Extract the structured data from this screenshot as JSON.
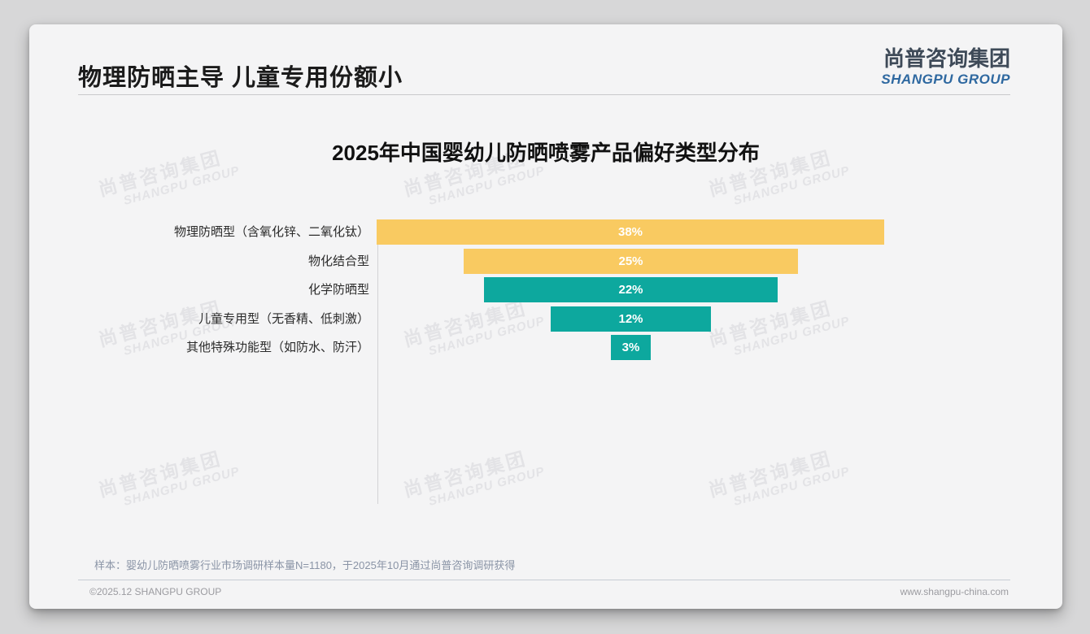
{
  "header": {
    "title": "物理防晒主导 儿童专用份额小"
  },
  "logo": {
    "cn": "尚普咨询集团",
    "en": "SHANGPU GROUP",
    "cn_color": "#3e4a58",
    "en_color": "#2e68a0"
  },
  "chart_data": {
    "type": "bar",
    "orientation": "horizontal-centered-funnel",
    "title": "2025年中国婴幼儿防晒喷雾产品偏好类型分布",
    "categories": [
      "物理防晒型（含氧化锌、二氧化钛）",
      "物化结合型",
      "化学防晒型",
      "儿童专用型（无香精、低刺激）",
      "其他特殊功能型（如防水、防汗）"
    ],
    "values": [
      38,
      25,
      22,
      12,
      3
    ],
    "value_labels": [
      "38%",
      "25%",
      "22%",
      "12%",
      "3%"
    ],
    "bar_colors": [
      "#F9CA61",
      "#F9CA61",
      "#0DA89E",
      "#0DA89E",
      "#0DA89E"
    ],
    "xlabel": "",
    "ylabel": "",
    "xlim": [
      0,
      38
    ],
    "grid": false,
    "legend": false
  },
  "watermark": {
    "cn": "尚普咨询集团",
    "en": "SHANGPU GROUP"
  },
  "footer": {
    "note": "样本：婴幼儿防晒喷雾行业市场调研样本量N=1180，于2025年10月通过尚普咨询调研获得",
    "copyright": "©2025.12 SHANGPU GROUP",
    "website": "www.shangpu-china.com"
  }
}
